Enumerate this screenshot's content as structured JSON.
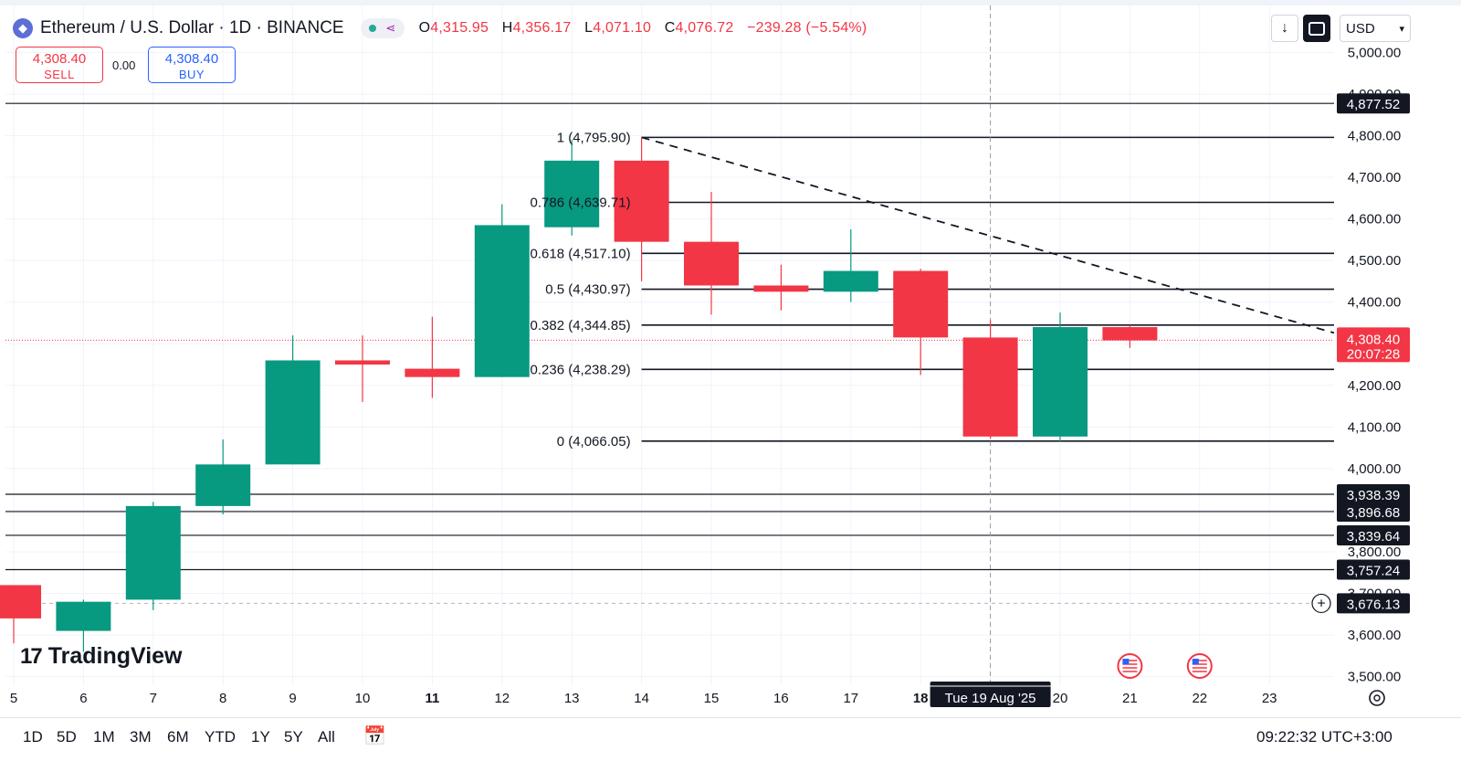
{
  "header": {
    "coin_icon": "ethereum-icon",
    "title": "Ethereum / U.S. Dollar · 1D · BINANCE",
    "ohlc": [
      {
        "k": "O",
        "v": "4,315.95"
      },
      {
        "k": "H",
        "v": "4,356.17"
      },
      {
        "k": "L",
        "v": "4,071.10"
      },
      {
        "k": "C",
        "v": "4,076.72"
      }
    ],
    "change": "−239.28 (−5.54%)"
  },
  "trade": {
    "sell_price": "4,308.40",
    "sell_label": "SELL",
    "spread": "0.00",
    "buy_price": "4,308.40",
    "buy_label": "BUY"
  },
  "toolbar": {
    "download_icon": "download-icon",
    "fullscreen_icon": "fullscreen-icon",
    "currency": "USD"
  },
  "bottom": {
    "periods": [
      "1D",
      "5D",
      "1M",
      "3M",
      "6M",
      "YTD",
      "1Y",
      "5Y",
      "All"
    ],
    "calendar_icon": "calendar-range-icon",
    "clock": "09:22:32 UTC+3:00"
  },
  "watermark": "TradingView",
  "colors": {
    "up": "#089981",
    "down": "#f23645",
    "fib": "#131722"
  },
  "chart_data": {
    "type": "candlestick",
    "symbol": "ETHUSD",
    "x_tick_labels": [
      "5",
      "6",
      "7",
      "8",
      "9",
      "10",
      "11",
      "12",
      "13",
      "14",
      "15",
      "16",
      "17",
      "18",
      "20",
      "21",
      "22",
      "23"
    ],
    "y_tick_labels": [
      "5,000.00",
      "4,900.00",
      "4,800.00",
      "4,700.00",
      "4,600.00",
      "4,500.00",
      "4,400.00",
      "4,200.00",
      "4,100.00",
      "4,000.00",
      "3,800.00",
      "3,700.00",
      "3,600.00",
      "3,500.00"
    ],
    "ylim": [
      3500,
      5000
    ],
    "candles": [
      {
        "x": "5",
        "o": 3720,
        "h": 3720,
        "l": 3580,
        "c": 3640
      },
      {
        "x": "6",
        "o": 3610,
        "h": 3685,
        "l": 3560,
        "c": 3680
      },
      {
        "x": "7",
        "o": 3685,
        "h": 3920,
        "l": 3660,
        "c": 3910
      },
      {
        "x": "8",
        "o": 3910,
        "h": 4070,
        "l": 3890,
        "c": 4010
      },
      {
        "x": "9",
        "o": 4010,
        "h": 4320,
        "l": 4010,
        "c": 4260
      },
      {
        "x": "10",
        "o": 4260,
        "h": 4320,
        "l": 4160,
        "c": 4250
      },
      {
        "x": "11",
        "o": 4240,
        "h": 4365,
        "l": 4170,
        "c": 4220
      },
      {
        "x": "12",
        "o": 4220,
        "h": 4635,
        "l": 4220,
        "c": 4585
      },
      {
        "x": "13",
        "o": 4580,
        "h": 4790,
        "l": 4560,
        "c": 4740
      },
      {
        "x": "14",
        "o": 4740,
        "h": 4795,
        "l": 4450,
        "c": 4545
      },
      {
        "x": "15",
        "o": 4545,
        "h": 4665,
        "l": 4370,
        "c": 4440
      },
      {
        "x": "16",
        "o": 4440,
        "h": 4490,
        "l": 4380,
        "c": 4425
      },
      {
        "x": "17",
        "o": 4425,
        "h": 4575,
        "l": 4400,
        "c": 4475
      },
      {
        "x": "18",
        "o": 4475,
        "h": 4480,
        "l": 4225,
        "c": 4315
      },
      {
        "x": "19",
        "o": 4315,
        "h": 4356,
        "l": 4071,
        "c": 4077
      },
      {
        "x": "20",
        "o": 4077,
        "h": 4375,
        "l": 4065,
        "c": 4340
      },
      {
        "x": "21",
        "o": 4340,
        "h": 4345,
        "l": 4290,
        "c": 4308
      }
    ],
    "fib_levels": [
      {
        "ratio": "1",
        "label": "1 (4,795.90)",
        "price": 4795.9
      },
      {
        "ratio": "0.786",
        "label": "0.786 (4,639.71)",
        "price": 4639.71
      },
      {
        "ratio": "0.618",
        "label": "0.618 (4,517.10)",
        "price": 4517.1
      },
      {
        "ratio": "0.5",
        "label": "0.5 (4,430.97)",
        "price": 4430.97
      },
      {
        "ratio": "0.382",
        "label": "0.382 (4,344.85)",
        "price": 4344.85
      },
      {
        "ratio": "0.236",
        "label": "0.236 (4,238.29)",
        "price": 4238.29
      },
      {
        "ratio": "0",
        "label": "0 (4,066.05)",
        "price": 4066.05
      }
    ],
    "horizontal_lines": [
      {
        "price": 4877.52,
        "label": "4,877.52"
      },
      {
        "price": 3938.39,
        "label": "3,938.39"
      },
      {
        "price": 3896.68,
        "label": "3,896.68"
      },
      {
        "price": 3839.64,
        "label": "3,839.64"
      },
      {
        "price": 3757.24,
        "label": "3,757.24"
      }
    ],
    "alert_line": {
      "price": 3676.13,
      "label": "3,676.13"
    },
    "current_price": {
      "price": 4308.4,
      "label": "4,308.40",
      "countdown": "20:07:28"
    },
    "trendline": {
      "from": {
        "x": "14",
        "y": 4795.9
      },
      "to": {
        "x": "23",
        "y": 4370
      }
    },
    "crosshair": {
      "x": "19",
      "label": "Tue 19 Aug '25"
    },
    "bold_x_labels": [
      "11",
      "18"
    ],
    "event_flags": [
      {
        "x": "21",
        "icon": "us-flag-icon"
      },
      {
        "x": "22",
        "icon": "us-flag-icon"
      }
    ],
    "grid": true,
    "settings_icon": "settings-icon"
  }
}
